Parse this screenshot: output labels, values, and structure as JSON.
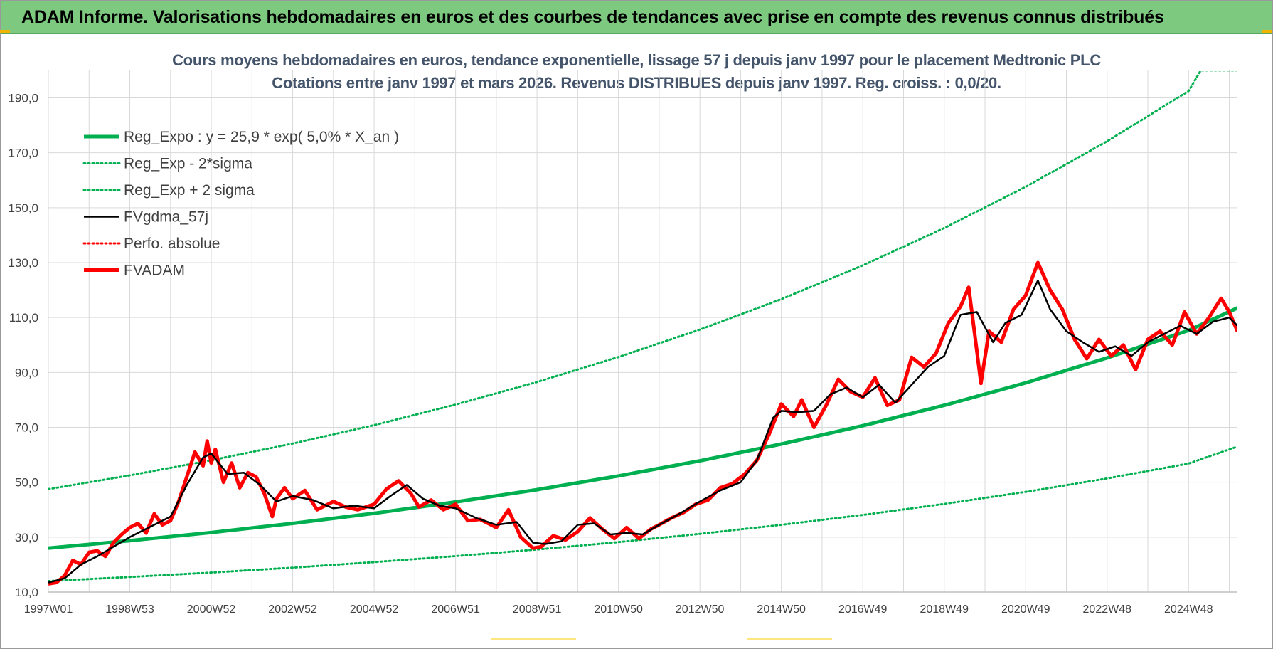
{
  "header": {
    "title": "ADAM Informe. Valorisations hebdomadaires en euros et des courbes de tendances avec prise en compte des revenus connus distribués"
  },
  "chart_data": {
    "type": "line",
    "title": "Cours moyens hebdomadaires en euros, tendance exponentielle, lissage 57 j depuis janv 1997 pour le placement Medtronic PLC",
    "subtitle": "Cotations entre janv 1997 et mars 2026. Revenus DISTRIBUES depuis janv 1997. Reg. croiss. : 0,0/20.",
    "ylim": [
      10,
      190
    ],
    "y_ticks": [
      "10,0",
      "30,0",
      "50,0",
      "70,0",
      "90,0",
      "110,0",
      "130,0",
      "150,0",
      "170,0",
      "190,0"
    ],
    "y_tick_values": [
      10,
      30,
      50,
      70,
      90,
      110,
      130,
      150,
      170,
      190
    ],
    "xlim": [
      1997.0,
      2026.2
    ],
    "x_ticks": [
      "1997W01",
      "1998W53",
      "2000W52",
      "2002W52",
      "2004W52",
      "2006W51",
      "2008W51",
      "2010W50",
      "2012W50",
      "2014W50",
      "2016W49",
      "2018W49",
      "2020W49",
      "2022W48",
      "2024W48"
    ],
    "x_tick_values": [
      1997.0,
      1999.0,
      2001.0,
      2003.0,
      2005.0,
      2007.0,
      2009.0,
      2011.0,
      2013.0,
      2015.0,
      2017.0,
      2019.0,
      2021.0,
      2023.0,
      2025.0
    ],
    "grid": true,
    "legend_position": "top-left",
    "series": [
      {
        "name": "Reg_Expo : y = 25,9 * exp( 5,0% *  X_an )",
        "style": "solid-thick",
        "color": "#00b050",
        "x": [
          1997.0,
          1999.0,
          2001.0,
          2003.0,
          2005.0,
          2007.0,
          2009.0,
          2011.0,
          2013.0,
          2015.0,
          2017.0,
          2019.0,
          2021.0,
          2023.0,
          2025.0,
          2026.2
        ],
        "values": [
          26.0,
          28.7,
          31.7,
          35.0,
          38.7,
          42.8,
          47.3,
          52.3,
          57.8,
          63.9,
          70.6,
          78.0,
          86.2,
          95.3,
          105.3,
          113.5
        ]
      },
      {
        "name": "Reg_Exp - 2*sigma",
        "style": "dotted",
        "color": "#00b050",
        "x": [
          1997.0,
          1999.0,
          2001.0,
          2003.0,
          2005.0,
          2007.0,
          2009.0,
          2011.0,
          2013.0,
          2015.0,
          2017.0,
          2019.0,
          2021.0,
          2023.0,
          2025.0,
          2026.2
        ],
        "values": [
          14.0,
          15.5,
          17.1,
          18.9,
          20.9,
          23.1,
          25.5,
          28.2,
          31.2,
          34.5,
          38.1,
          42.1,
          46.5,
          51.4,
          56.8,
          63.0
        ]
      },
      {
        "name": "Reg_Exp + 2 sigma",
        "style": "dotted",
        "color": "#00b050",
        "x": [
          1997.0,
          1999.0,
          2001.0,
          2003.0,
          2005.0,
          2007.0,
          2009.0,
          2011.0,
          2013.0,
          2015.0,
          2017.0,
          2019.0,
          2021.0,
          2023.0,
          2025.0,
          2025.3,
          2026.2
        ],
        "values": [
          47.5,
          52.5,
          58.0,
          64.1,
          70.8,
          78.3,
          86.5,
          95.6,
          105.6,
          116.7,
          129.0,
          142.6,
          157.6,
          174.2,
          192.5,
          200.0,
          200.0
        ]
      },
      {
        "name": "FVgdma_57j",
        "style": "solid",
        "color": "#000000",
        "x": [
          1997.0,
          1997.4,
          1997.8,
          1998.2,
          1998.6,
          1999.0,
          1999.4,
          1999.8,
          2000.0,
          2000.4,
          2000.8,
          2001.0,
          2001.4,
          2001.8,
          2002.2,
          2002.6,
          2003.0,
          2003.5,
          2004.0,
          2004.5,
          2005.0,
          2005.4,
          2005.8,
          2006.2,
          2006.6,
          2007.0,
          2007.5,
          2008.0,
          2008.5,
          2008.9,
          2009.2,
          2009.6,
          2010.0,
          2010.4,
          2010.8,
          2011.2,
          2011.6,
          2012.0,
          2012.5,
          2013.0,
          2013.5,
          2014.0,
          2014.4,
          2014.8,
          2015.0,
          2015.4,
          2015.8,
          2016.2,
          2016.6,
          2017.0,
          2017.4,
          2017.8,
          2018.2,
          2018.6,
          2019.0,
          2019.4,
          2019.8,
          2020.2,
          2020.5,
          2020.9,
          2021.3,
          2021.6,
          2022.0,
          2022.4,
          2022.8,
          2023.2,
          2023.6,
          2024.0,
          2024.4,
          2024.8,
          2025.2,
          2025.6,
          2026.0,
          2026.2
        ],
        "values": [
          13.5,
          15.0,
          20.0,
          23.0,
          26.5,
          30.0,
          33.0,
          36.0,
          37.5,
          49.0,
          59.0,
          60.5,
          53.0,
          53.5,
          49.0,
          43.0,
          45.0,
          43.5,
          40.5,
          41.5,
          40.5,
          45.0,
          49.0,
          44.0,
          41.5,
          40.5,
          37.0,
          34.5,
          35.5,
          28.0,
          27.5,
          28.5,
          34.5,
          35.0,
          31.0,
          31.5,
          31.0,
          34.5,
          38.5,
          43.0,
          47.0,
          50.0,
          58.0,
          73.5,
          76.0,
          75.5,
          76.0,
          82.0,
          84.5,
          81.0,
          85.5,
          79.0,
          85.5,
          92.0,
          96.0,
          111.0,
          112.0,
          101.0,
          108.0,
          111.0,
          123.5,
          113.0,
          105.0,
          101.0,
          97.5,
          99.5,
          96.0,
          101.0,
          104.0,
          107.0,
          104.0,
          108.5,
          110.0,
          107.0
        ]
      },
      {
        "name": "Perfo. absolue",
        "style": "dotted",
        "color": "#ff0000",
        "x": [],
        "values": []
      },
      {
        "name": "FVADAM",
        "style": "solid-thick",
        "color": "#ff0000",
        "x": [
          1997.0,
          1997.2,
          1997.4,
          1997.6,
          1997.8,
          1998.0,
          1998.2,
          1998.4,
          1998.6,
          1998.8,
          1999.0,
          1999.2,
          1999.4,
          1999.6,
          1999.8,
          2000.0,
          2000.2,
          2000.4,
          2000.6,
          2000.8,
          2000.9,
          2001.0,
          2001.1,
          2001.3,
          2001.5,
          2001.7,
          2001.9,
          2002.1,
          2002.3,
          2002.5,
          2002.6,
          2002.8,
          2003.0,
          2003.3,
          2003.6,
          2004.0,
          2004.3,
          2004.6,
          2005.0,
          2005.3,
          2005.6,
          2005.9,
          2006.1,
          2006.4,
          2006.7,
          2007.0,
          2007.3,
          2007.6,
          2008.0,
          2008.3,
          2008.6,
          2008.9,
          2009.1,
          2009.4,
          2009.7,
          2010.0,
          2010.3,
          2010.6,
          2010.9,
          2011.2,
          2011.5,
          2011.8,
          2012.0,
          2012.3,
          2012.6,
          2012.9,
          2013.2,
          2013.5,
          2013.8,
          2014.1,
          2014.4,
          2014.7,
          2015.0,
          2015.3,
          2015.5,
          2015.8,
          2016.1,
          2016.4,
          2016.7,
          2017.0,
          2017.3,
          2017.6,
          2017.9,
          2018.2,
          2018.5,
          2018.8,
          2019.1,
          2019.4,
          2019.6,
          2019.8,
          2019.9,
          2020.1,
          2020.4,
          2020.7,
          2021.0,
          2021.3,
          2021.6,
          2021.9,
          2022.2,
          2022.5,
          2022.8,
          2023.1,
          2023.4,
          2023.7,
          2024.0,
          2024.3,
          2024.6,
          2024.9,
          2025.2,
          2025.5,
          2025.8,
          2026.0,
          2026.2
        ],
        "values": [
          13.0,
          13.5,
          16.0,
          21.5,
          20.0,
          24.5,
          25.0,
          23.0,
          28.0,
          31.0,
          33.5,
          35.0,
          31.5,
          38.5,
          34.5,
          36.0,
          43.0,
          52.0,
          61.0,
          56.0,
          65.0,
          57.0,
          62.0,
          50.0,
          57.0,
          48.0,
          53.5,
          52.0,
          46.0,
          37.5,
          44.0,
          48.0,
          44.0,
          47.0,
          40.0,
          43.0,
          41.0,
          40.0,
          42.0,
          47.5,
          50.5,
          46.0,
          41.0,
          43.5,
          40.0,
          42.0,
          36.0,
          36.5,
          33.5,
          40.0,
          30.0,
          26.0,
          26.5,
          30.5,
          29.0,
          32.0,
          37.0,
          33.0,
          29.5,
          33.5,
          29.5,
          33.0,
          34.5,
          37.0,
          39.0,
          42.0,
          43.5,
          48.0,
          49.5,
          53.0,
          58.0,
          67.5,
          78.5,
          74.0,
          80.0,
          70.0,
          78.0,
          87.5,
          83.0,
          81.0,
          88.0,
          78.0,
          80.0,
          95.5,
          92.0,
          97.0,
          108.0,
          114.0,
          121.0,
          98.0,
          86.0,
          105.0,
          101.0,
          113.0,
          118.0,
          130.0,
          120.0,
          113.0,
          102.0,
          95.0,
          102.0,
          96.0,
          100.0,
          91.0,
          102.0,
          105.0,
          100.0,
          112.0,
          104.0,
          110.0,
          117.0,
          112.0,
          105.0
        ]
      }
    ]
  }
}
